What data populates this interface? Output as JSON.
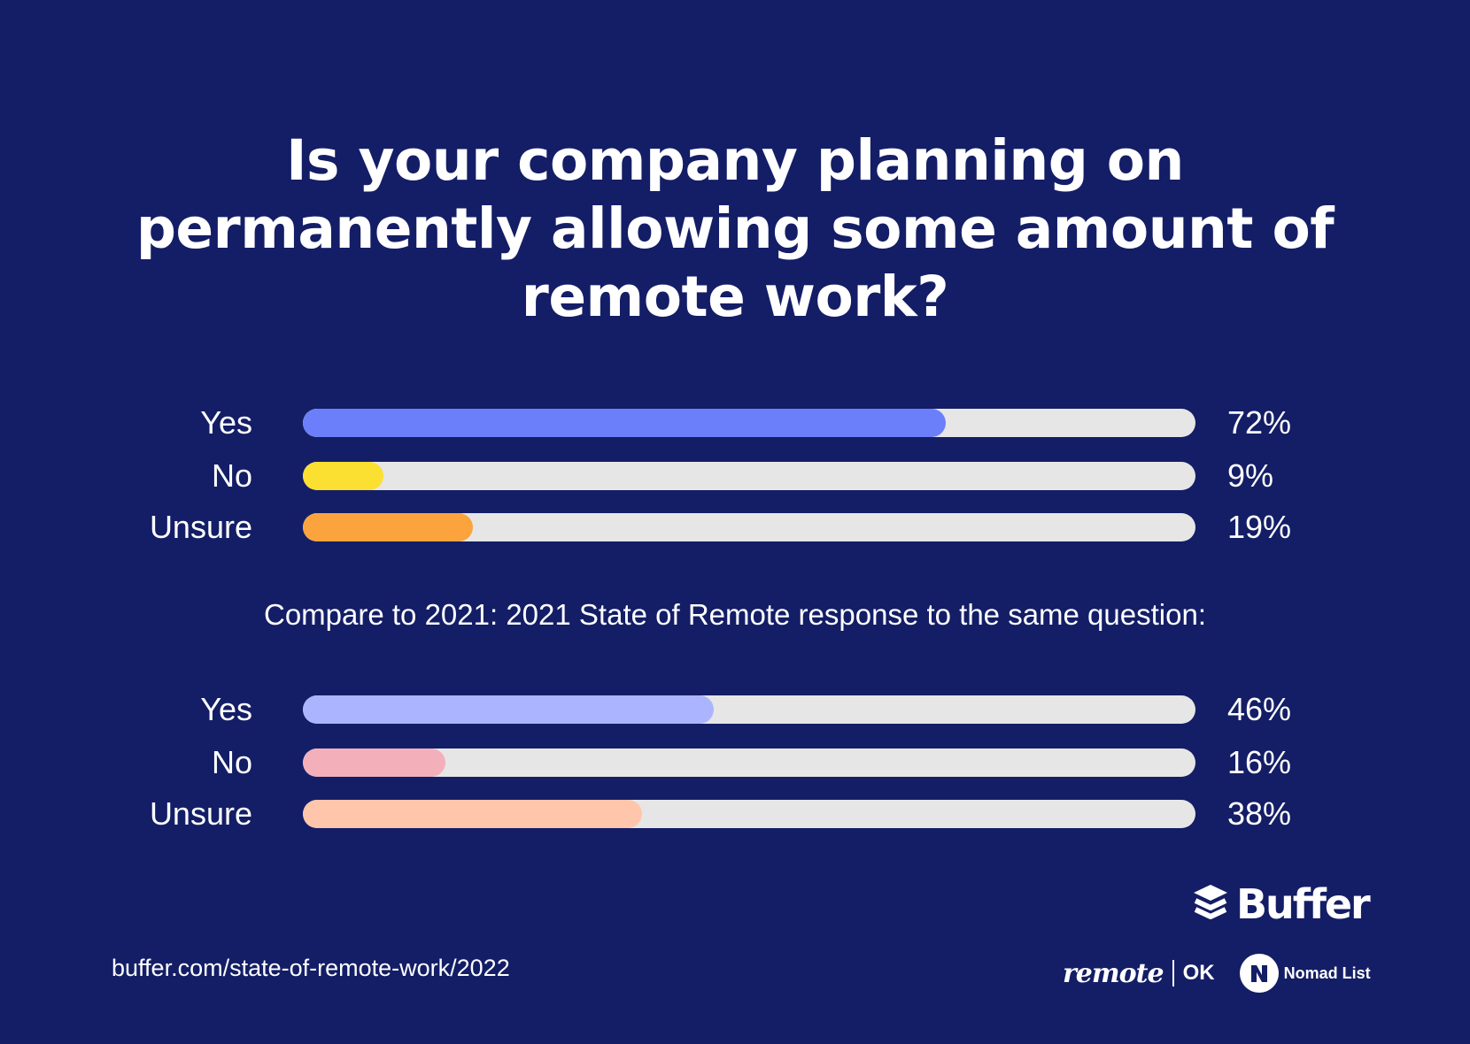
{
  "chart_data": [
    {
      "type": "bar",
      "title": "Is your company planning on permanently allowing some amount of remote work?",
      "categories": [
        "Yes",
        "No",
        "Unsure"
      ],
      "values": [
        72,
        9,
        19
      ],
      "value_labels": [
        "72%",
        "9%",
        "19%"
      ],
      "colors": [
        "#6b7ffb",
        "#fbe032",
        "#fba43d"
      ],
      "xlim": [
        0,
        100
      ]
    },
    {
      "type": "bar",
      "subtitle": "Compare to 2021: 2021 State of Remote response to the same question:",
      "categories": [
        "Yes",
        "No",
        "Unsure"
      ],
      "values": [
        46,
        16,
        38
      ],
      "value_labels": [
        "46%",
        "16%",
        "38%"
      ],
      "colors": [
        "#abb5ff",
        "#f3b0bb",
        "#ffc6ab"
      ],
      "xlim": [
        0,
        100
      ]
    }
  ],
  "track_color": "#e6e6e6",
  "source_url": "buffer.com/state-of-remote-work/2022",
  "logos": {
    "buffer": "Buffer",
    "remote": "remote",
    "ok": "OK",
    "nomad": "Nomad List",
    "buffer_icon": "buffer-stack-icon",
    "nomad_icon": "nomad-list-n-icon"
  }
}
